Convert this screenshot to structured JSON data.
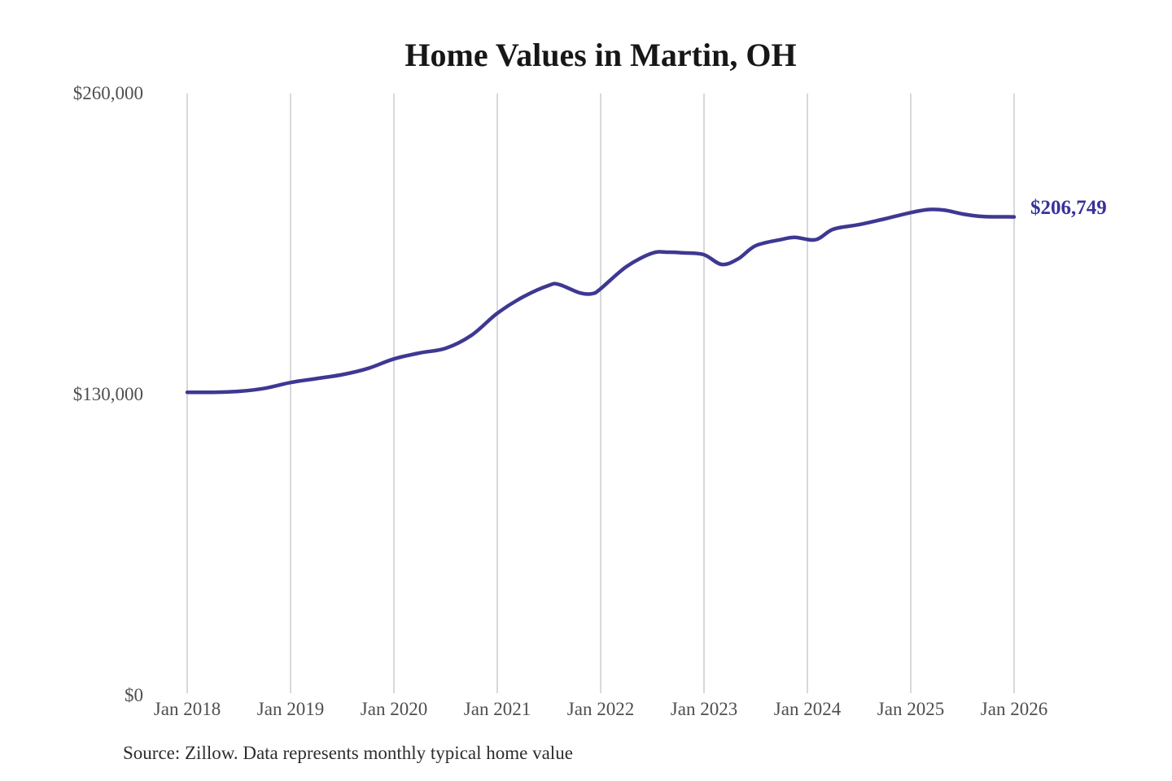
{
  "source_note": "Source: Zillow. Data represents monthly typical home value",
  "chart_data": {
    "type": "line",
    "title": "Home Values in Martin, OH",
    "series_name": "Monthly typical home value",
    "xlabel": "",
    "ylabel": "",
    "x_unit": "decimal-year",
    "xlim": [
      2018.0,
      2026.0
    ],
    "ylim": [
      0,
      260000
    ],
    "grid": "vertical-only",
    "legend": "none",
    "x_tick_labels": [
      "Jan 2018",
      "Jan 2019",
      "Jan 2020",
      "Jan 2021",
      "Jan 2022",
      "Jan 2023",
      "Jan 2024",
      "Jan 2025",
      "Jan 2026"
    ],
    "x_tick_values": [
      2018,
      2019,
      2020,
      2021,
      2022,
      2023,
      2024,
      2025,
      2026
    ],
    "y_tick_labels": [
      "$0",
      "$130,000",
      "$260,000"
    ],
    "y_tick_values": [
      0,
      130000,
      260000
    ],
    "end_label": "$206,749",
    "end_value": 206749,
    "line_color": "#3e3893",
    "grid_color": "#cccccc",
    "points": [
      [
        2018.0,
        131000
      ],
      [
        2018.25,
        131000
      ],
      [
        2018.5,
        131400
      ],
      [
        2018.75,
        132700
      ],
      [
        2019.0,
        135200
      ],
      [
        2019.25,
        136900
      ],
      [
        2019.5,
        138600
      ],
      [
        2019.75,
        141300
      ],
      [
        2020.0,
        145400
      ],
      [
        2020.25,
        148000
      ],
      [
        2020.5,
        150000
      ],
      [
        2020.75,
        155600
      ],
      [
        2021.0,
        165100
      ],
      [
        2021.25,
        172200
      ],
      [
        2021.5,
        177200
      ],
      [
        2021.6,
        177500
      ],
      [
        2021.8,
        173900
      ],
      [
        2021.92,
        173600
      ],
      [
        2022.0,
        175700
      ],
      [
        2022.25,
        185300
      ],
      [
        2022.5,
        191100
      ],
      [
        2022.65,
        191500
      ],
      [
        2022.8,
        191200
      ],
      [
        2023.0,
        190400
      ],
      [
        2023.17,
        186200
      ],
      [
        2023.33,
        188600
      ],
      [
        2023.5,
        194300
      ],
      [
        2023.75,
        197000
      ],
      [
        2023.88,
        197900
      ],
      [
        2024.08,
        196900
      ],
      [
        2024.25,
        201400
      ],
      [
        2024.5,
        203400
      ],
      [
        2024.75,
        205900
      ],
      [
        2025.0,
        208600
      ],
      [
        2025.17,
        209900
      ],
      [
        2025.33,
        209600
      ],
      [
        2025.5,
        208000
      ],
      [
        2025.7,
        206900
      ],
      [
        2026.0,
        206749
      ]
    ]
  }
}
